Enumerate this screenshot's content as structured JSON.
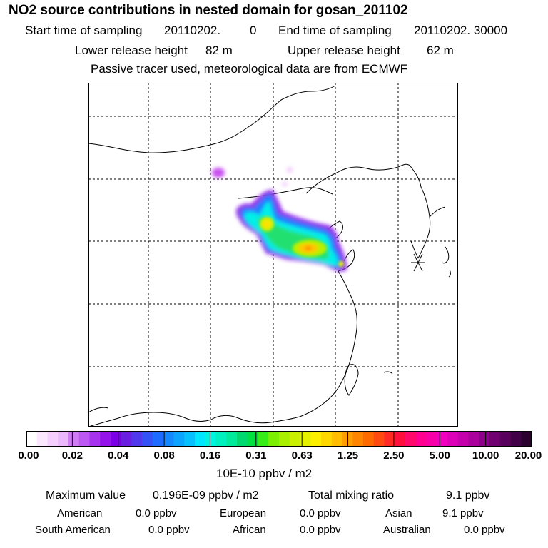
{
  "title": "NO2 source contributions in nested domain for gosan_201102",
  "sampling": {
    "start_label": "Start time of sampling",
    "start_date": "20110202.",
    "start_time": "0",
    "end_label": "End time of sampling",
    "end_value": "20110202. 30000"
  },
  "release": {
    "lower_label": "Lower release height",
    "lower_value": "82 m",
    "upper_label": "Upper release height",
    "upper_value": "62 m"
  },
  "note": "Passive tracer used, meteorological data are from ECMWF",
  "colorbar": {
    "unit": "10E-10 ppbv / m2",
    "ticks": [
      "0.00",
      "0.02",
      "0.04",
      "0.08",
      "0.16",
      "0.31",
      "0.63",
      "1.25",
      "2.50",
      "5.00",
      "10.00",
      "20.00"
    ],
    "colors": [
      "#ffffff",
      "#fbe8ff",
      "#f5d0ff",
      "#eab8fb",
      "#d07cf5",
      "#bd58f2",
      "#a833ee",
      "#9414ea",
      "#7c00e6",
      "#6a1ee0",
      "#5038ec",
      "#3452f6",
      "#1e6cff",
      "#1488ff",
      "#0ca4ff",
      "#06c0ff",
      "#00e6ff",
      "#00f2e0",
      "#00f0c0",
      "#00ea9c",
      "#00d870",
      "#00e040",
      "#38ec18",
      "#7cf000",
      "#a8f000",
      "#c8f000",
      "#e4f000",
      "#fcf000",
      "#ffd800",
      "#ffbc00",
      "#ffa000",
      "#ff8400",
      "#ff6a00",
      "#ff4a10",
      "#ff2a24",
      "#ff103c",
      "#ff0a6a",
      "#ff0090",
      "#f800a8",
      "#f000be",
      "#dc00b8",
      "#c400ac",
      "#aa009c",
      "#8e008a",
      "#700070",
      "#58005c",
      "#420046",
      "#2c002e"
    ]
  },
  "stats": {
    "max_label": "Maximum value",
    "max_value": "0.196E-09 ppbv / m2",
    "total_label": "Total mixing ratio",
    "total_value": "9.1 ppbv"
  },
  "regions": [
    {
      "name": "American",
      "value": "0.0 ppbv"
    },
    {
      "name": "European",
      "value": "0.0 ppbv"
    },
    {
      "name": "Asian",
      "value": "9.1 ppbv"
    },
    {
      "name": "South American",
      "value": "0.0 ppbv"
    },
    {
      "name": "African",
      "value": "0.0 ppbv"
    },
    {
      "name": "Australian",
      "value": "0.0 ppbv"
    }
  ]
}
